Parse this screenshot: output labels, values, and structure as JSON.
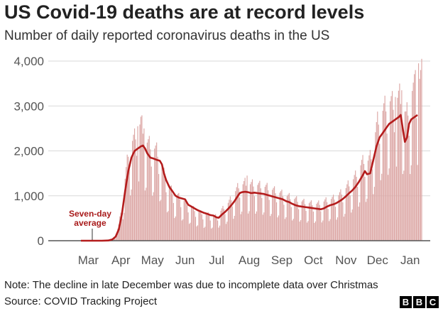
{
  "header": {
    "title": "US Covid-19 deaths are at record levels",
    "subtitle": "Number of daily reported coronavirus deaths in the US"
  },
  "footer": {
    "note": "Note: The decline in late December was due to incomplete data over Christmas",
    "source": "Source: COVID Tracking Project",
    "logo_letters": [
      "B",
      "B",
      "C"
    ]
  },
  "colors": {
    "bar": "#dca7a5",
    "line": "#b41c1c",
    "grid": "#d9d9d9",
    "axis": "#555555",
    "text": "#222222",
    "annotation": "#a81a1a"
  },
  "chart_data": {
    "type": "bar",
    "title": "US Covid-19 deaths are at record levels",
    "subtitle": "Number of daily reported coronavirus deaths in the US",
    "xlabel": "",
    "ylabel": "",
    "ylim": [
      0,
      4000
    ],
    "yticks": [
      0,
      1000,
      2000,
      3000,
      4000
    ],
    "ytick_labels": [
      "0",
      "1,000",
      "2,000",
      "3,000",
      "4,000"
    ],
    "x_ticks": [
      {
        "day": 7,
        "label": "Mar"
      },
      {
        "day": 38,
        "label": "Apr"
      },
      {
        "day": 68,
        "label": "May"
      },
      {
        "day": 99,
        "label": "Jun"
      },
      {
        "day": 129,
        "label": "Jul"
      },
      {
        "day": 160,
        "label": "Aug"
      },
      {
        "day": 191,
        "label": "Sep"
      },
      {
        "day": 221,
        "label": "Oct"
      },
      {
        "day": 252,
        "label": "Nov"
      },
      {
        "day": 282,
        "label": "Dec"
      },
      {
        "day": 313,
        "label": "Jan"
      }
    ],
    "x_range_days": [
      0,
      324
    ],
    "daily_anchors_note": "daily bar series, day 0 = 23 Feb 2020",
    "series": [
      {
        "name": "Daily reported deaths",
        "kind": "bar",
        "day_start": 0,
        "anchors": [
          [
            0,
            0
          ],
          [
            20,
            0
          ],
          [
            26,
            5
          ],
          [
            30,
            40
          ],
          [
            33,
            100
          ],
          [
            36,
            300
          ],
          [
            39,
            700
          ],
          [
            42,
            1200
          ],
          [
            45,
            1700
          ],
          [
            48,
            1900
          ],
          [
            51,
            2000
          ],
          [
            54,
            2150
          ],
          [
            57,
            2300
          ],
          [
            60,
            2100
          ],
          [
            63,
            1900
          ],
          [
            66,
            1850
          ],
          [
            69,
            1800
          ],
          [
            72,
            1750
          ],
          [
            75,
            1600
          ],
          [
            78,
            1350
          ],
          [
            81,
            1200
          ],
          [
            84,
            1050
          ],
          [
            87,
            950
          ],
          [
            90,
            900
          ],
          [
            93,
            850
          ],
          [
            96,
            820
          ],
          [
            99,
            750
          ],
          [
            102,
            700
          ],
          [
            105,
            650
          ],
          [
            108,
            600
          ],
          [
            111,
            570
          ],
          [
            114,
            540
          ],
          [
            117,
            520
          ],
          [
            120,
            510
          ],
          [
            123,
            500
          ],
          [
            126,
            480
          ],
          [
            129,
            470
          ],
          [
            132,
            560
          ],
          [
            135,
            620
          ],
          [
            138,
            680
          ],
          [
            141,
            760
          ],
          [
            144,
            850
          ],
          [
            147,
            960
          ],
          [
            150,
            1060
          ],
          [
            153,
            1080
          ],
          [
            156,
            1120
          ],
          [
            159,
            1100
          ],
          [
            162,
            1090
          ],
          [
            165,
            1100
          ],
          [
            168,
            1080
          ],
          [
            171,
            1060
          ],
          [
            174,
            1050
          ],
          [
            177,
            1030
          ],
          [
            180,
            1000
          ],
          [
            183,
            980
          ],
          [
            186,
            950
          ],
          [
            189,
            930
          ],
          [
            192,
            900
          ],
          [
            195,
            870
          ],
          [
            198,
            850
          ],
          [
            201,
            820
          ],
          [
            204,
            800
          ],
          [
            207,
            780
          ],
          [
            210,
            760
          ],
          [
            213,
            740
          ],
          [
            216,
            730
          ],
          [
            219,
            720
          ],
          [
            222,
            720
          ],
          [
            225,
            710
          ],
          [
            228,
            730
          ],
          [
            231,
            760
          ],
          [
            234,
            780
          ],
          [
            237,
            800
          ],
          [
            240,
            820
          ],
          [
            243,
            850
          ],
          [
            246,
            900
          ],
          [
            249,
            950
          ],
          [
            252,
            1020
          ],
          [
            255,
            1100
          ],
          [
            258,
            1160
          ],
          [
            261,
            1250
          ],
          [
            264,
            1380
          ],
          [
            267,
            1500
          ],
          [
            270,
            1580
          ],
          [
            273,
            1550
          ],
          [
            276,
            1650
          ],
          [
            279,
            2000
          ],
          [
            282,
            2300
          ],
          [
            285,
            2450
          ],
          [
            288,
            2550
          ],
          [
            291,
            2650
          ],
          [
            294,
            2700
          ],
          [
            297,
            2650
          ],
          [
            300,
            2750
          ],
          [
            303,
            2800
          ],
          [
            306,
            2700
          ],
          [
            309,
            2400
          ],
          [
            312,
            2600
          ],
          [
            315,
            2900
          ],
          [
            318,
            3000
          ],
          [
            321,
            3100
          ],
          [
            324,
            3200
          ]
        ],
        "weekday_factors": [
          1.15,
          1.2,
          1.25,
          1.1,
          0.9,
          0.55,
          0.6
        ],
        "peak_values": [
          {
            "day": 54,
            "value": 2550
          },
          {
            "day": 60,
            "value": 2500
          },
          {
            "day": 158,
            "value": 1450
          },
          {
            "day": 299,
            "value": 3200
          },
          {
            "day": 305,
            "value": 3350
          },
          {
            "day": 318,
            "value": 3800
          },
          {
            "day": 321,
            "value": 3950
          },
          {
            "day": 324,
            "value": 4050
          }
        ]
      },
      {
        "name": "Seven-day average",
        "kind": "line",
        "points": [
          [
            0,
            0
          ],
          [
            20,
            0
          ],
          [
            26,
            5
          ],
          [
            30,
            30
          ],
          [
            33,
            90
          ],
          [
            36,
            250
          ],
          [
            39,
            600
          ],
          [
            42,
            1100
          ],
          [
            45,
            1550
          ],
          [
            48,
            1850
          ],
          [
            51,
            2000
          ],
          [
            54,
            2050
          ],
          [
            57,
            2100
          ],
          [
            59,
            2120
          ],
          [
            61,
            2050
          ],
          [
            63,
            1950
          ],
          [
            66,
            1850
          ],
          [
            69,
            1830
          ],
          [
            72,
            1800
          ],
          [
            75,
            1780
          ],
          [
            77,
            1700
          ],
          [
            79,
            1500
          ],
          [
            81,
            1350
          ],
          [
            84,
            1200
          ],
          [
            87,
            1100
          ],
          [
            90,
            1000
          ],
          [
            93,
            960
          ],
          [
            96,
            940
          ],
          [
            99,
            920
          ],
          [
            102,
            800
          ],
          [
            105,
            760
          ],
          [
            108,
            720
          ],
          [
            111,
            680
          ],
          [
            114,
            650
          ],
          [
            117,
            620
          ],
          [
            120,
            600
          ],
          [
            123,
            570
          ],
          [
            126,
            560
          ],
          [
            129,
            520
          ],
          [
            131,
            510
          ],
          [
            134,
            580
          ],
          [
            137,
            640
          ],
          [
            140,
            710
          ],
          [
            143,
            790
          ],
          [
            146,
            880
          ],
          [
            149,
            990
          ],
          [
            151,
            1060
          ],
          [
            153,
            1080
          ],
          [
            156,
            1090
          ],
          [
            159,
            1080
          ],
          [
            162,
            1060
          ],
          [
            165,
            1070
          ],
          [
            168,
            1060
          ],
          [
            171,
            1050
          ],
          [
            174,
            1040
          ],
          [
            177,
            1020
          ],
          [
            180,
            1000
          ],
          [
            183,
            980
          ],
          [
            186,
            960
          ],
          [
            189,
            940
          ],
          [
            192,
            920
          ],
          [
            195,
            880
          ],
          [
            198,
            860
          ],
          [
            201,
            820
          ],
          [
            204,
            790
          ],
          [
            207,
            770
          ],
          [
            210,
            760
          ],
          [
            213,
            750
          ],
          [
            216,
            740
          ],
          [
            219,
            730
          ],
          [
            222,
            720
          ],
          [
            225,
            710
          ],
          [
            228,
            700
          ],
          [
            231,
            720
          ],
          [
            234,
            760
          ],
          [
            237,
            790
          ],
          [
            240,
            810
          ],
          [
            243,
            840
          ],
          [
            246,
            880
          ],
          [
            249,
            930
          ],
          [
            252,
            990
          ],
          [
            255,
            1060
          ],
          [
            258,
            1120
          ],
          [
            261,
            1200
          ],
          [
            264,
            1300
          ],
          [
            267,
            1420
          ],
          [
            270,
            1550
          ],
          [
            272,
            1480
          ],
          [
            275,
            1500
          ],
          [
            278,
            1800
          ],
          [
            281,
            2100
          ],
          [
            284,
            2300
          ],
          [
            287,
            2400
          ],
          [
            290,
            2500
          ],
          [
            293,
            2600
          ],
          [
            296,
            2650
          ],
          [
            299,
            2700
          ],
          [
            302,
            2750
          ],
          [
            304,
            2800
          ],
          [
            306,
            2500
          ],
          [
            308,
            2200
          ],
          [
            310,
            2300
          ],
          [
            312,
            2600
          ],
          [
            314,
            2700
          ],
          [
            317,
            2750
          ],
          [
            320,
            2800
          ]
        ]
      }
    ],
    "annotations": [
      {
        "text": "Seven-day",
        "text2": "average",
        "day": 29,
        "value": 0
      }
    ]
  }
}
